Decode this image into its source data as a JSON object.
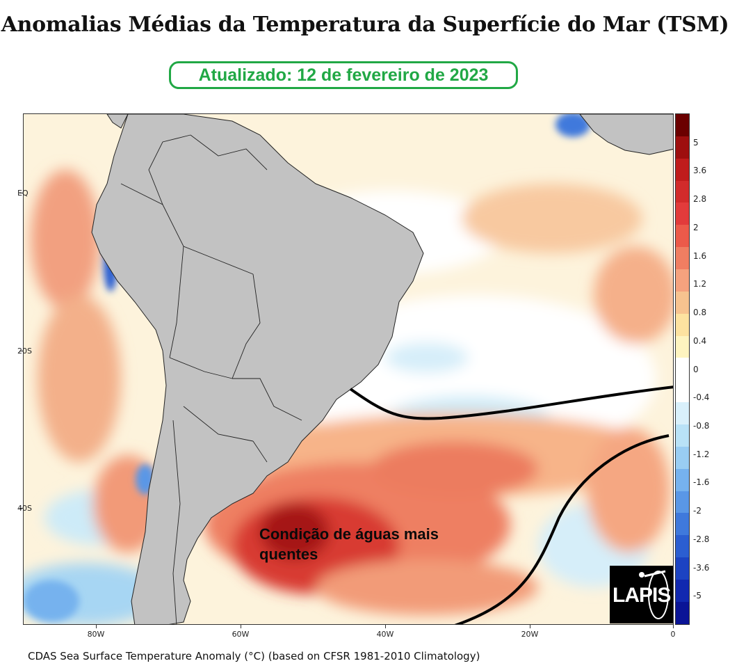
{
  "title": "Anomalias Médias da Temperatura da Superfície do Mar (TSM)",
  "updated": "Atualizado: 12 de fevereiro de 2023",
  "map": {
    "lat_labels": [
      "EQ",
      "20S",
      "40S"
    ],
    "lon_labels": [
      "80W",
      "60W",
      "40W",
      "20W",
      "0"
    ],
    "annotation_line1": "Condição de águas mais",
    "annotation_line2": "quentes",
    "land_color": "#c2c2c2"
  },
  "colorbar": {
    "labels": [
      "5",
      "3.6",
      "2.8",
      "2",
      "1.6",
      "1.2",
      "0.8",
      "0.4",
      "0",
      "-0.4",
      "-0.8",
      "-1.2",
      "-1.6",
      "-2",
      "-2.8",
      "-3.6",
      "-5"
    ],
    "colors": [
      "#6b0000",
      "#9e0f0f",
      "#c01c1c",
      "#d22b2b",
      "#e23b3b",
      "#ec5a4a",
      "#f07e62",
      "#f5a27e",
      "#f7c38f",
      "#fde2a0",
      "#fef4c0",
      "#ffffff",
      "#ffffff",
      "#d9f0fb",
      "#b9e2f7",
      "#99cdf3",
      "#76b2ee",
      "#5a97e6",
      "#3f79dc",
      "#2b5ed1",
      "#1c43c2",
      "#1128b0",
      "#0a1496"
    ]
  },
  "logo_text": "LAPIS",
  "caption": "CDAS Sea Surface Temperature Anomaly (°C) (based on CFSR 1981-2010 Climatology)"
}
